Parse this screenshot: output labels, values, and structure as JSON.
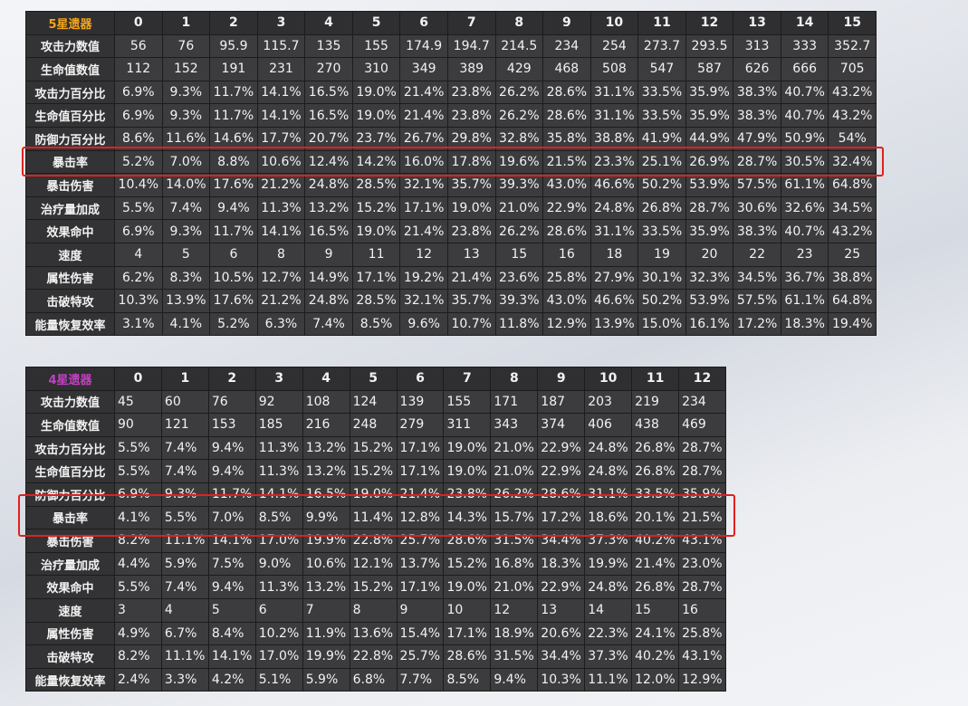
{
  "tables": [
    {
      "title": "5星遗器",
      "columns": [
        0,
        1,
        2,
        3,
        4,
        5,
        6,
        7,
        8,
        9,
        10,
        11,
        12,
        13,
        14,
        15
      ],
      "rows": [
        {
          "label": "攻击力数值",
          "values": [
            56,
            76,
            95.9,
            115.7,
            135,
            155,
            174.9,
            194.7,
            214.5,
            234,
            254,
            273.7,
            293.5,
            313,
            333,
            352.7
          ]
        },
        {
          "label": "生命值数值",
          "values": [
            112,
            152,
            191,
            231,
            270,
            310,
            349,
            389,
            429,
            468,
            508,
            547,
            587,
            626,
            666,
            705
          ]
        },
        {
          "label": "攻击力百分比",
          "values": [
            "6.9%",
            "9.3%",
            "11.7%",
            "14.1%",
            "16.5%",
            "19.0%",
            "21.4%",
            "23.8%",
            "26.2%",
            "28.6%",
            "31.1%",
            "33.5%",
            "35.9%",
            "38.3%",
            "40.7%",
            "43.2%"
          ]
        },
        {
          "label": "生命值百分比",
          "values": [
            "6.9%",
            "9.3%",
            "11.7%",
            "14.1%",
            "16.5%",
            "19.0%",
            "21.4%",
            "23.8%",
            "26.2%",
            "28.6%",
            "31.1%",
            "33.5%",
            "35.9%",
            "38.3%",
            "40.7%",
            "43.2%"
          ]
        },
        {
          "label": "防御力百分比",
          "values": [
            "8.6%",
            "11.6%",
            "14.6%",
            "17.7%",
            "20.7%",
            "23.7%",
            "26.7%",
            "29.8%",
            "32.8%",
            "35.8%",
            "38.8%",
            "41.9%",
            "44.9%",
            "47.9%",
            "50.9%",
            "54%"
          ]
        },
        {
          "label": "暴击率",
          "values": [
            "5.2%",
            "7.0%",
            "8.8%",
            "10.6%",
            "12.4%",
            "14.2%",
            "16.0%",
            "17.8%",
            "19.6%",
            "21.5%",
            "23.3%",
            "25.1%",
            "26.9%",
            "28.7%",
            "30.5%",
            "32.4%"
          ]
        },
        {
          "label": "暴击伤害",
          "values": [
            "10.4%",
            "14.0%",
            "17.6%",
            "21.2%",
            "24.8%",
            "28.5%",
            "32.1%",
            "35.7%",
            "39.3%",
            "43.0%",
            "46.6%",
            "50.2%",
            "53.9%",
            "57.5%",
            "61.1%",
            "64.8%"
          ]
        },
        {
          "label": "治疗量加成",
          "values": [
            "5.5%",
            "7.4%",
            "9.4%",
            "11.3%",
            "13.2%",
            "15.2%",
            "17.1%",
            "19.0%",
            "21.0%",
            "22.9%",
            "24.8%",
            "26.8%",
            "28.7%",
            "30.6%",
            "32.6%",
            "34.5%"
          ]
        },
        {
          "label": "效果命中",
          "values": [
            "6.9%",
            "9.3%",
            "11.7%",
            "14.1%",
            "16.5%",
            "19.0%",
            "21.4%",
            "23.8%",
            "26.2%",
            "28.6%",
            "31.1%",
            "33.5%",
            "35.9%",
            "38.3%",
            "40.7%",
            "43.2%"
          ]
        },
        {
          "label": "速度",
          "values": [
            4,
            5,
            6,
            8,
            9,
            11,
            12,
            13,
            15,
            16,
            18,
            19,
            20,
            22,
            23,
            25
          ]
        },
        {
          "label": "属性伤害",
          "values": [
            "6.2%",
            "8.3%",
            "10.5%",
            "12.7%",
            "14.9%",
            "17.1%",
            "19.2%",
            "21.4%",
            "23.6%",
            "25.8%",
            "27.9%",
            "30.1%",
            "32.3%",
            "34.5%",
            "36.7%",
            "38.8%"
          ]
        },
        {
          "label": "击破特攻",
          "values": [
            "10.3%",
            "13.9%",
            "17.6%",
            "21.2%",
            "24.8%",
            "28.5%",
            "32.1%",
            "35.7%",
            "39.3%",
            "43.0%",
            "46.6%",
            "50.2%",
            "53.9%",
            "57.5%",
            "61.1%",
            "64.8%"
          ]
        },
        {
          "label": "能量恢复效率",
          "values": [
            "3.1%",
            "4.1%",
            "5.2%",
            "6.3%",
            "7.4%",
            "8.5%",
            "9.6%",
            "10.7%",
            "11.8%",
            "12.9%",
            "13.9%",
            "15.0%",
            "16.1%",
            "17.2%",
            "18.3%",
            "19.4%"
          ]
        }
      ]
    },
    {
      "title": "4星遗器",
      "columns": [
        0,
        1,
        2,
        3,
        4,
        5,
        6,
        7,
        8,
        9,
        10,
        11,
        12
      ],
      "rows": [
        {
          "label": "攻击力数值",
          "values": [
            45,
            60,
            76,
            92,
            108,
            124,
            139,
            155,
            171,
            187,
            203,
            219,
            234
          ]
        },
        {
          "label": "生命值数值",
          "values": [
            90,
            121,
            153,
            185,
            216,
            248,
            279,
            311,
            343,
            374,
            406,
            438,
            469
          ]
        },
        {
          "label": "攻击力百分比",
          "values": [
            "5.5%",
            "7.4%",
            "9.4%",
            "11.3%",
            "13.2%",
            "15.2%",
            "17.1%",
            "19.0%",
            "21.0%",
            "22.9%",
            "24.8%",
            "26.8%",
            "28.7%"
          ]
        },
        {
          "label": "生命值百分比",
          "values": [
            "5.5%",
            "7.4%",
            "9.4%",
            "11.3%",
            "13.2%",
            "15.2%",
            "17.1%",
            "19.0%",
            "21.0%",
            "22.9%",
            "24.8%",
            "26.8%",
            "28.7%"
          ]
        },
        {
          "label": "防御力百分比",
          "values": [
            "6.9%",
            "9.3%",
            "11.7%",
            "14.1%",
            "16.5%",
            "19.0%",
            "21.4%",
            "23.8%",
            "26.2%",
            "28.6%",
            "31.1%",
            "33.5%",
            "35.9%"
          ]
        },
        {
          "label": "暴击率",
          "values": [
            "4.1%",
            "5.5%",
            "7.0%",
            "8.5%",
            "9.9%",
            "11.4%",
            "12.8%",
            "14.3%",
            "15.7%",
            "17.2%",
            "18.6%",
            "20.1%",
            "21.5%"
          ]
        },
        {
          "label": "暴击伤害",
          "values": [
            "8.2%",
            "11.1%",
            "14.1%",
            "17.0%",
            "19.9%",
            "22.8%",
            "25.7%",
            "28.6%",
            "31.5%",
            "34.4%",
            "37.3%",
            "40.2%",
            "43.1%"
          ]
        },
        {
          "label": "治疗量加成",
          "values": [
            "4.4%",
            "5.9%",
            "7.5%",
            "9.0%",
            "10.6%",
            "12.1%",
            "13.7%",
            "15.2%",
            "16.8%",
            "18.3%",
            "19.9%",
            "21.4%",
            "23.0%"
          ]
        },
        {
          "label": "效果命中",
          "values": [
            "5.5%",
            "7.4%",
            "9.4%",
            "11.3%",
            "13.2%",
            "15.2%",
            "17.1%",
            "19.0%",
            "21.0%",
            "22.9%",
            "24.8%",
            "26.8%",
            "28.7%"
          ]
        },
        {
          "label": "速度",
          "values": [
            3,
            4,
            5,
            6,
            7,
            8,
            9,
            10,
            12,
            13,
            14,
            15,
            16
          ]
        },
        {
          "label": "属性伤害",
          "values": [
            "4.9%",
            "6.7%",
            "8.4%",
            "10.2%",
            "11.9%",
            "13.6%",
            "15.4%",
            "17.1%",
            "18.9%",
            "20.6%",
            "22.3%",
            "24.1%",
            "25.8%"
          ]
        },
        {
          "label": "击破特攻",
          "values": [
            "8.2%",
            "11.1%",
            "14.1%",
            "17.0%",
            "19.9%",
            "22.8%",
            "25.7%",
            "28.6%",
            "31.5%",
            "34.4%",
            "37.3%",
            "40.2%",
            "43.1%"
          ]
        },
        {
          "label": "能量恢复效率",
          "values": [
            "2.4%",
            "3.3%",
            "4.2%",
            "5.1%",
            "5.9%",
            "6.8%",
            "7.7%",
            "8.5%",
            "9.4%",
            "10.3%",
            "11.1%",
            "12.0%",
            "12.9%"
          ]
        }
      ]
    }
  ]
}
